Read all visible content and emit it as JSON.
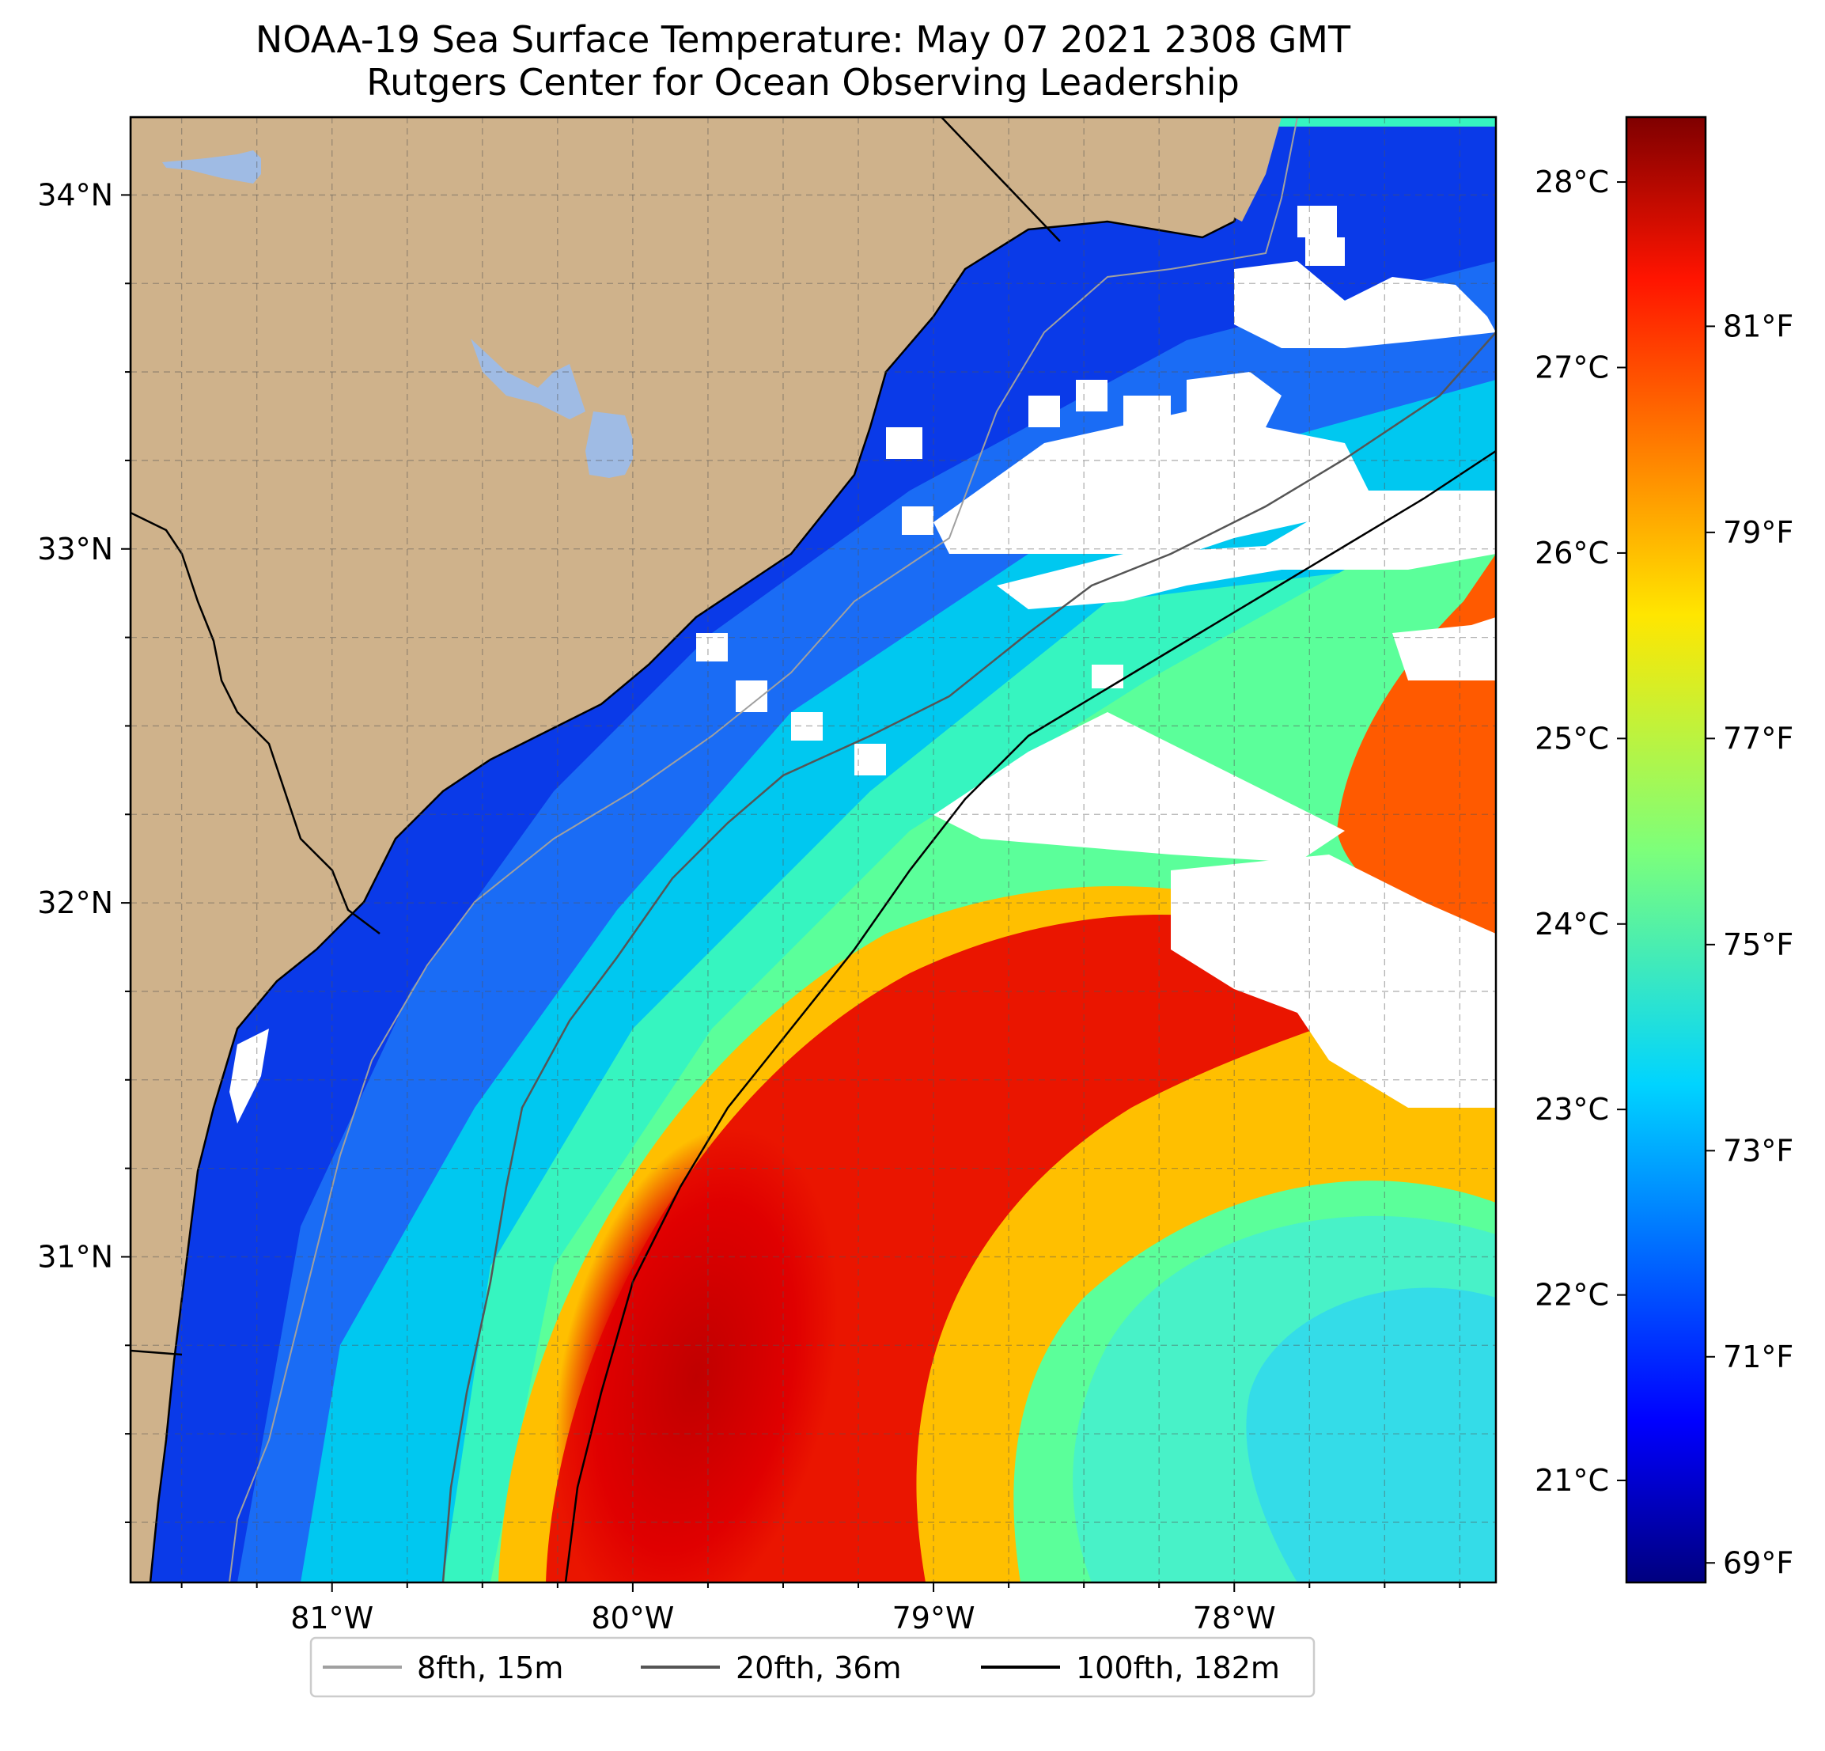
{
  "title": {
    "line1": "NOAA-19 Sea Surface Temperature: May 07 2021 2308 GMT",
    "line2": "Rutgers Center for Ocean Observing Leadership"
  },
  "map": {
    "lon_range": [
      -81.67,
      -77.13
    ],
    "lat_range": [
      30.08,
      34.22
    ],
    "lon_ticks": [
      {
        "value": -81,
        "label": "81°W"
      },
      {
        "value": -80,
        "label": "80°W"
      },
      {
        "value": -79,
        "label": "79°W"
      },
      {
        "value": -78,
        "label": "78°W"
      }
    ],
    "lat_ticks": [
      {
        "value": 31,
        "label": "31°N"
      },
      {
        "value": 32,
        "label": "32°N"
      },
      {
        "value": 33,
        "label": "33°N"
      },
      {
        "value": 34,
        "label": "34°N"
      }
    ],
    "gridlines": true,
    "land_color": "#cfb28b",
    "lake_color": "#9fbbe4",
    "cloud_color": "#ffffff"
  },
  "colorbar": {
    "colormap": "jet",
    "range_c": [
      20.45,
      28.35
    ],
    "celsius_ticks": [
      {
        "value": 21,
        "label": "21°C"
      },
      {
        "value": 22,
        "label": "22°C"
      },
      {
        "value": 23,
        "label": "23°C"
      },
      {
        "value": 24,
        "label": "24°C"
      },
      {
        "value": 25,
        "label": "25°C"
      },
      {
        "value": 26,
        "label": "26°C"
      },
      {
        "value": 27,
        "label": "27°C"
      },
      {
        "value": 28,
        "label": "28°C"
      }
    ],
    "fahrenheit_ticks": [
      {
        "value": 69,
        "label": "69°F"
      },
      {
        "value": 71,
        "label": "71°F"
      },
      {
        "value": 73,
        "label": "73°F"
      },
      {
        "value": 75,
        "label": "75°F"
      },
      {
        "value": 77,
        "label": "77°F"
      },
      {
        "value": 79,
        "label": "79°F"
      },
      {
        "value": 81,
        "label": "81°F"
      }
    ]
  },
  "legend": {
    "placement": "bottom-center",
    "entries": [
      {
        "label": "8fth, 15m",
        "color": "#a0a0a0"
      },
      {
        "label": "20fth, 36m",
        "color": "#555555"
      },
      {
        "label": "100fth, 182m",
        "color": "#000000"
      }
    ]
  }
}
